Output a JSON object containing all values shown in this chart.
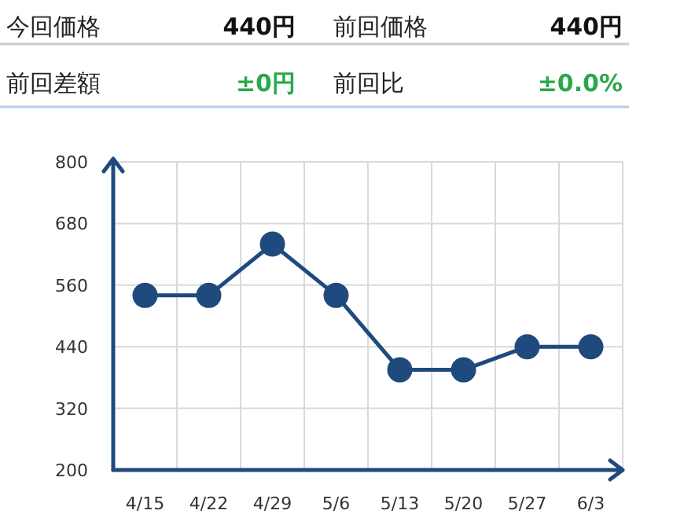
{
  "chart_data": [
    {
      "type": "other",
      "annotations": [
        "今回価格",
        "440円",
        "前回価格",
        "440円",
        "前回差額",
        "±0円",
        "前回比",
        "±0.0%"
      ]
    },
    {
      "type": "line",
      "categories": [
        "4/15",
        "4/22",
        "4/29",
        "5/6",
        "5/13",
        "5/20",
        "5/27",
        "6/3"
      ],
      "series": [
        {
          "color": "#1f4a7e",
          "values": [
            540,
            540,
            640,
            540,
            395,
            395,
            440,
            440
          ]
        }
      ],
      "ylim": [
        200,
        800
      ],
      "yticks": [
        200,
        320,
        440,
        560,
        680,
        800
      ],
      "grid": true,
      "marker": "circle",
      "line_style": "solid"
    }
  ]
}
